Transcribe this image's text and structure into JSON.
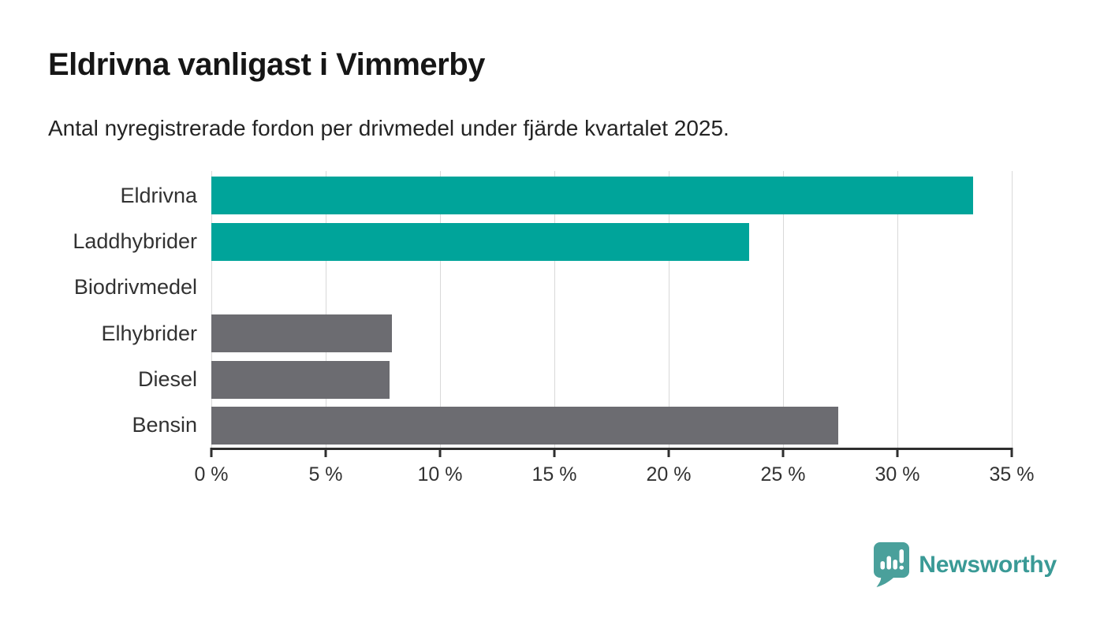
{
  "header": {
    "title": "Eldrivna vanligast i Vimmerby",
    "subtitle": "Antal nyregistrerade fordon per drivmedel under fjärde kvartalet 2025."
  },
  "chart_data": {
    "type": "bar",
    "orientation": "horizontal",
    "title": "Eldrivna vanligast i Vimmerby",
    "subtitle": "Antal nyregistrerade fordon per drivmedel under fjärde kvartalet 2025.",
    "categories": [
      "Eldrivna",
      "Laddhybrider",
      "Biodrivmedel",
      "Elhybrider",
      "Diesel",
      "Bensin"
    ],
    "values": [
      33.3,
      23.5,
      0,
      7.9,
      7.8,
      27.4
    ],
    "unit": "%",
    "bar_colors": [
      "#00a49a",
      "#00a49a",
      "#6c6c71",
      "#6c6c71",
      "#6c6c71",
      "#6c6c71"
    ],
    "highlight_color": "#00a49a",
    "base_color": "#6c6c71",
    "xlim": [
      0,
      35
    ],
    "x_ticks": [
      0,
      5,
      10,
      15,
      20,
      25,
      30,
      35
    ],
    "x_tick_labels": [
      "0 %",
      "5 %",
      "10 %",
      "15 %",
      "20 %",
      "25 %",
      "30 %",
      "35 %"
    ],
    "grid": "vertical",
    "gridline_color": "#d9d9d9",
    "legend": "none",
    "xlabel": "",
    "ylabel": ""
  },
  "footer": {
    "brand": "Newsworthy",
    "brand_color": "#3a9a96",
    "logo_color": "#4aa09b"
  }
}
